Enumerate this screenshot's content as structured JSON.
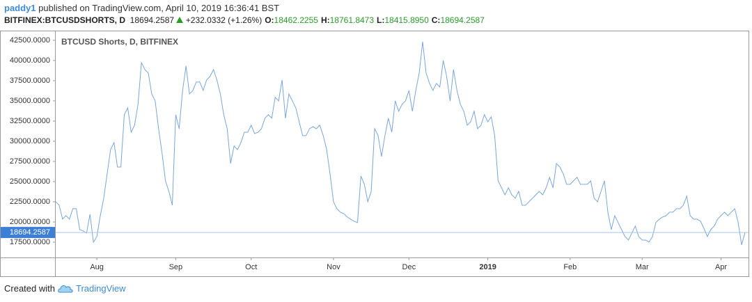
{
  "header": {
    "publisher": "paddy1",
    "published_text": "published on TradingView.com, April 10, 2019 16:36:41 BST",
    "symbol": "BITFINEX:BTCUSDSHORTS, D",
    "last": "18694.2587",
    "change": "+232.0332",
    "change_percent": "(+1.26%)",
    "ohlc": [
      {
        "label": "O:",
        "value": "18462.2255"
      },
      {
        "label": "H:",
        "value": "18761.8473"
      },
      {
        "label": "L:",
        "value": "18415.8950"
      },
      {
        "label": "C:",
        "value": "18694.2587"
      }
    ]
  },
  "chart_data": {
    "type": "line",
    "title": "BTCUSD Shorts, D, BITFINEX",
    "categories": [
      null,
      null,
      null,
      null,
      null,
      null,
      null,
      null,
      null,
      null,
      null,
      null,
      "Aug",
      null,
      null,
      null,
      null,
      null,
      null,
      null,
      null,
      null,
      null,
      null,
      null,
      null,
      null,
      null,
      null,
      null,
      null,
      null,
      null,
      null,
      null,
      "Sep",
      null,
      null,
      null,
      null,
      null,
      null,
      null,
      null,
      null,
      null,
      null,
      null,
      null,
      null,
      null,
      null,
      null,
      null,
      null,
      null,
      null,
      "Oct",
      null,
      null,
      null,
      null,
      null,
      null,
      null,
      null,
      null,
      null,
      null,
      null,
      null,
      null,
      null,
      null,
      null,
      null,
      null,
      null,
      null,
      null,
      null,
      "Nov",
      null,
      null,
      null,
      null,
      null,
      null,
      null,
      null,
      null,
      null,
      null,
      null,
      null,
      null,
      null,
      null,
      null,
      null,
      null,
      null,
      null,
      "Dec",
      null,
      null,
      null,
      null,
      null,
      null,
      null,
      null,
      null,
      null,
      null,
      null,
      null,
      null,
      null,
      null,
      null,
      null,
      null,
      null,
      null,
      null,
      "2019",
      null,
      null,
      null,
      null,
      null,
      null,
      null,
      null,
      null,
      null,
      null,
      null,
      null,
      null,
      null,
      null,
      null,
      null,
      null,
      null,
      null,
      null,
      null,
      "Feb",
      null,
      null,
      null,
      null,
      null,
      null,
      null,
      null,
      null,
      null,
      null,
      null,
      null,
      null,
      null,
      null,
      null,
      null,
      null,
      null,
      "Mar",
      null,
      null,
      null,
      null,
      null,
      null,
      null,
      null,
      null,
      null,
      null,
      null,
      null,
      null,
      null,
      null,
      null,
      null,
      null,
      null,
      null,
      null,
      "Apr",
      null,
      null,
      null,
      null,
      null,
      null,
      null
    ],
    "series": [
      {
        "name": "BTCUSD Shorts",
        "color": "#7aa6dc",
        "values": [
          22500,
          22070,
          20350,
          20780,
          20350,
          21640,
          21640,
          19050,
          18880,
          18620,
          20950,
          17500,
          18190,
          20780,
          22930,
          25950,
          28970,
          29830,
          26810,
          26810,
          33280,
          34140,
          31120,
          31980,
          34570,
          39740,
          38880,
          38450,
          35860,
          35000,
          31550,
          28540,
          25090,
          23790,
          22070,
          33280,
          31550,
          36290,
          39310,
          35860,
          36290,
          37330,
          37330,
          36290,
          37590,
          38020,
          38880,
          37590,
          35860,
          33280,
          31550,
          27240,
          29400,
          28970,
          29830,
          31120,
          31120,
          31980,
          30950,
          31120,
          31550,
          32850,
          33280,
          32850,
          35430,
          35000,
          37590,
          32850,
          35860,
          35000,
          34140,
          32410,
          30690,
          30690,
          31550,
          31810,
          31550,
          31980,
          30690,
          28970,
          25950,
          22500,
          21640,
          21210,
          21040,
          20610,
          20350,
          20090,
          19920,
          25690,
          24660,
          22500,
          23790,
          31550,
          30690,
          28100,
          30690,
          32850,
          31120,
          35000,
          33710,
          34570,
          35000,
          36290,
          33710,
          36290,
          38450,
          42330,
          38450,
          37160,
          36290,
          37160,
          36720,
          40000,
          38020,
          35000,
          38880,
          36290,
          34570,
          33710,
          31980,
          32410,
          33710,
          31550,
          31980,
          33280,
          32410,
          33020,
          30690,
          25090,
          24230,
          23360,
          24230,
          23360,
          22930,
          23790,
          22070,
          22070,
          22500,
          22930,
          23360,
          23790,
          23360,
          24230,
          25520,
          24230,
          27240,
          26810,
          25950,
          24660,
          24660,
          25090,
          25520,
          24660,
          24660,
          24660,
          25090,
          22930,
          22500,
          23790,
          25090,
          21210,
          19050,
          20780,
          19920,
          19050,
          18190,
          17760,
          18620,
          19480,
          18190,
          17760,
          17760,
          17500,
          18190,
          19920,
          20350,
          20610,
          20780,
          21210,
          21210,
          21640,
          21640,
          22070,
          23190,
          20780,
          20350,
          20350,
          20090,
          19230,
          18190,
          19050,
          19480,
          20350,
          20780,
          21210,
          20780,
          21210,
          21640,
          19920,
          17160,
          18694.2587
        ]
      }
    ],
    "last_price": 18694.2587,
    "last_price_color": "#3d7fd6",
    "ylim": [
      15600,
      43700
    ],
    "yticks": [
      {
        "value": 17500,
        "label": "17500.0000"
      },
      {
        "value": 20000,
        "label": "20000.0000"
      },
      {
        "value": 22500,
        "label": "22500.0000"
      },
      {
        "value": 25000,
        "label": "25000.0000"
      },
      {
        "value": 27500,
        "label": "27500.0000"
      },
      {
        "value": 30000,
        "label": "30000.0000"
      },
      {
        "value": 32500,
        "label": "32500.0000"
      },
      {
        "value": 35000,
        "label": "35000.0000"
      },
      {
        "value": 37500,
        "label": "37500.0000"
      },
      {
        "value": 40000,
        "label": "40000.0000"
      },
      {
        "value": 42500,
        "label": "42500.0000"
      }
    ]
  },
  "footer": {
    "created_with": "Created with",
    "brand": "TradingView"
  }
}
